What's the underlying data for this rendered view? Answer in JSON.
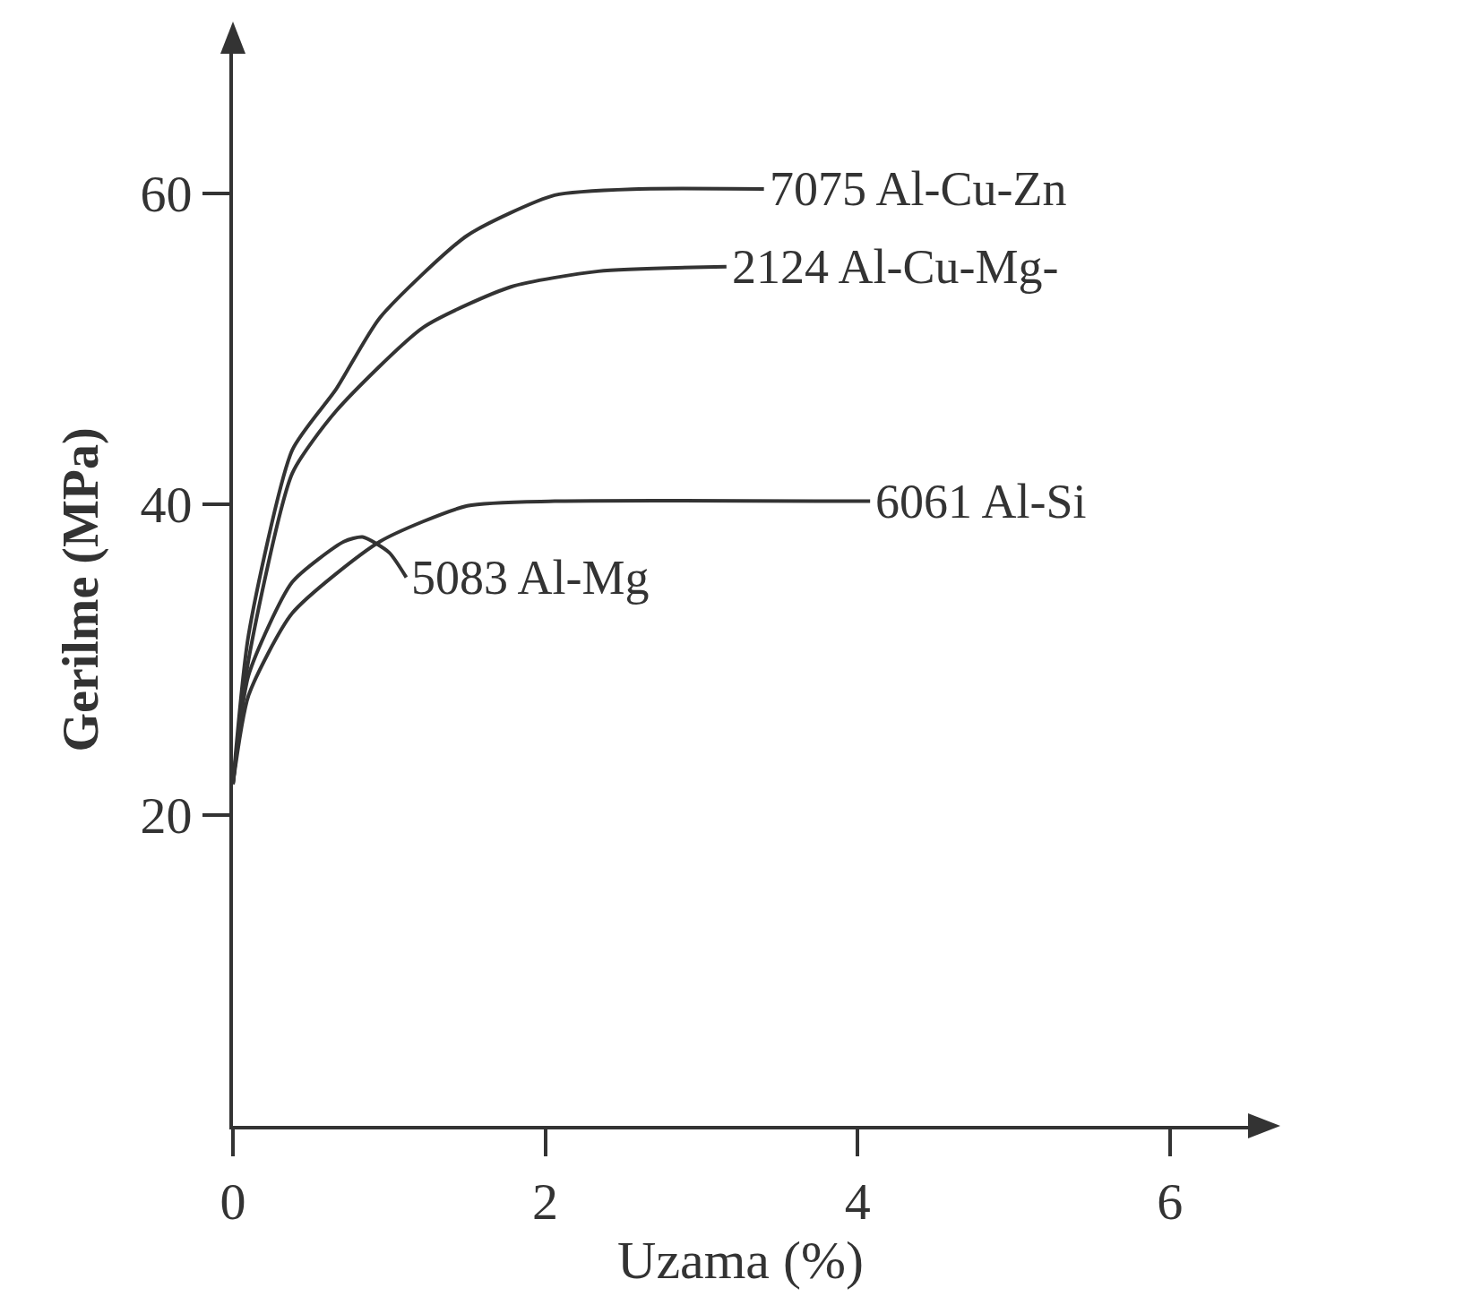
{
  "chart_data": {
    "type": "line",
    "xlabel": "Uzama (%)",
    "ylabel": "Gerilme (MPa)",
    "xlim": [
      0,
      6.5
    ],
    "ylim": [
      0,
      69
    ],
    "xticks": [
      0,
      2,
      4,
      6
    ],
    "yticks": [
      20,
      40,
      60
    ],
    "grid": false,
    "legend": false,
    "marker": "none",
    "line_style": "solid",
    "series": [
      {
        "name": "7075 Al-Cu-Zn",
        "color": "#333333",
        "x": [
          0,
          0.1,
          0.38,
          0.66,
          0.94,
          1.5,
          2.06,
          2.6,
          3.4
        ],
        "values": [
          22,
          31.6,
          43.5,
          47.4,
          52,
          57.3,
          59.9,
          60.3,
          60.3
        ]
      },
      {
        "name": "2124 Al-Cu-Mg-",
        "color": "#333333",
        "x": [
          0,
          0.1,
          0.38,
          0.66,
          1.22,
          1.78,
          2.34,
          3.16
        ],
        "values": [
          22,
          30,
          42,
          46,
          51.4,
          54,
          55,
          55.3
        ]
      },
      {
        "name": "6061 Al-Si",
        "color": "#333333",
        "x": [
          0,
          0.1,
          0.38,
          0.94,
          1.5,
          2.06,
          4.08
        ],
        "values": [
          22,
          27.7,
          33,
          37.6,
          39.9,
          40.2,
          40.2
        ]
      },
      {
        "name": "5083 Al-Mg",
        "color": "#333333",
        "x": [
          0,
          0.1,
          0.38,
          0.71,
          0.83,
          1.0,
          1.11
        ],
        "values": [
          22,
          29,
          35,
          37.6,
          37.9,
          36.9,
          35.3
        ]
      }
    ]
  }
}
